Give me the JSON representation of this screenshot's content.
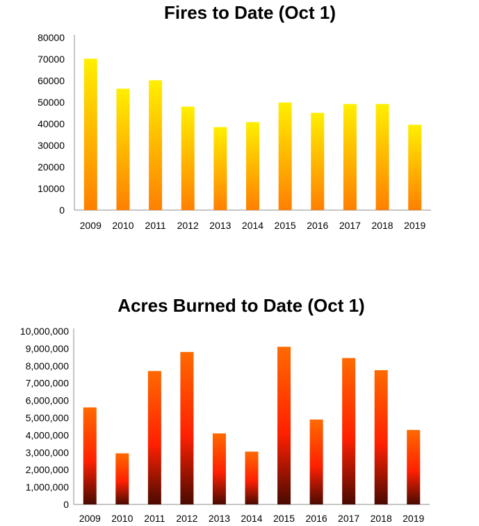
{
  "chart_data": [
    {
      "type": "bar",
      "title": "Fires to Date (Oct 1)",
      "categories": [
        "2009",
        "2010",
        "2011",
        "2012",
        "2013",
        "2014",
        "2015",
        "2016",
        "2017",
        "2018",
        "2019"
      ],
      "values": [
        70200,
        56300,
        60200,
        48000,
        38500,
        40800,
        49900,
        45100,
        49200,
        49200,
        39600
      ],
      "ylim": [
        0,
        80000
      ],
      "yticks": [
        0,
        10000,
        20000,
        30000,
        40000,
        50000,
        60000,
        70000,
        80000
      ],
      "ytick_labels": [
        "0",
        "10000",
        "20000",
        "30000",
        "40000",
        "50000",
        "60000",
        "70000",
        "80000"
      ],
      "grid": false,
      "bar_gradient": [
        "#ffef00",
        "#ff7f00"
      ]
    },
    {
      "type": "bar",
      "title": "Acres Burned to Date (Oct 1)",
      "categories": [
        "2009",
        "2010",
        "2011",
        "2012",
        "2013",
        "2014",
        "2015",
        "2016",
        "2017",
        "2018",
        "2019"
      ],
      "values": [
        5600000,
        2950000,
        7700000,
        8800000,
        4100000,
        3050000,
        9100000,
        4900000,
        8450000,
        7750000,
        4300000
      ],
      "ylim": [
        0,
        10000000
      ],
      "yticks": [
        0,
        1000000,
        2000000,
        3000000,
        4000000,
        5000000,
        6000000,
        7000000,
        8000000,
        9000000,
        10000000
      ],
      "ytick_labels": [
        "0",
        "1,000,000",
        "2,000,000",
        "3,000,000",
        "4,000,000",
        "5,000,000",
        "6,000,000",
        "7,000,000",
        "8,000,000",
        "9,000,000",
        "10,000,000"
      ],
      "grid": false,
      "bar_gradient": [
        "#ff6a00",
        "#ff2000",
        "#4a0a00"
      ]
    }
  ]
}
